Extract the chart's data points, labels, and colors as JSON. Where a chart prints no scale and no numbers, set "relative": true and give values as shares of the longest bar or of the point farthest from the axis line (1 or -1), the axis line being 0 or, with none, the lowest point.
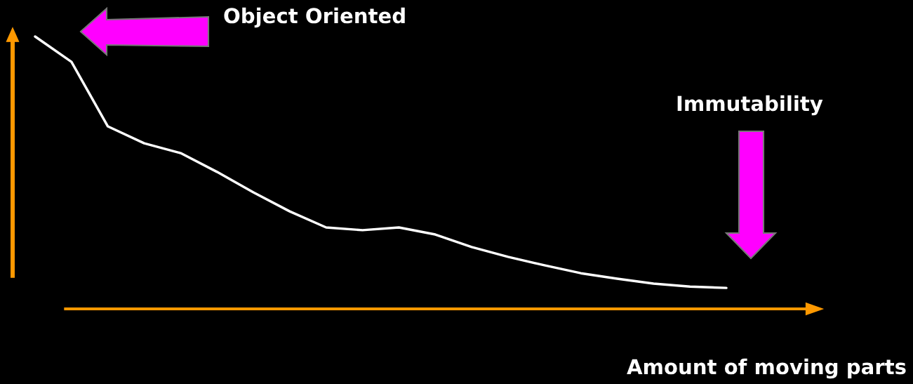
{
  "chart_data": {
    "type": "line",
    "relative": true,
    "xlabel": "Amount of moving parts",
    "annotations": [
      "Object Oriented",
      "Immutability"
    ],
    "categories": [
      null,
      null,
      null,
      null,
      null,
      null,
      null,
      null,
      null,
      null,
      null,
      null,
      null,
      null,
      null,
      null,
      null,
      null,
      null,
      null
    ],
    "series": [
      {
        "color": "#ffffff",
        "values": [
          1.0,
          0.907,
          0.67,
          0.608,
          0.572,
          0.503,
          0.428,
          0.358,
          0.299,
          0.289,
          0.299,
          0.273,
          0.227,
          0.191,
          0.16,
          0.131,
          0.111,
          0.093,
          0.082,
          0.077
        ]
      }
    ],
    "grid": false,
    "legend": false
  }
}
